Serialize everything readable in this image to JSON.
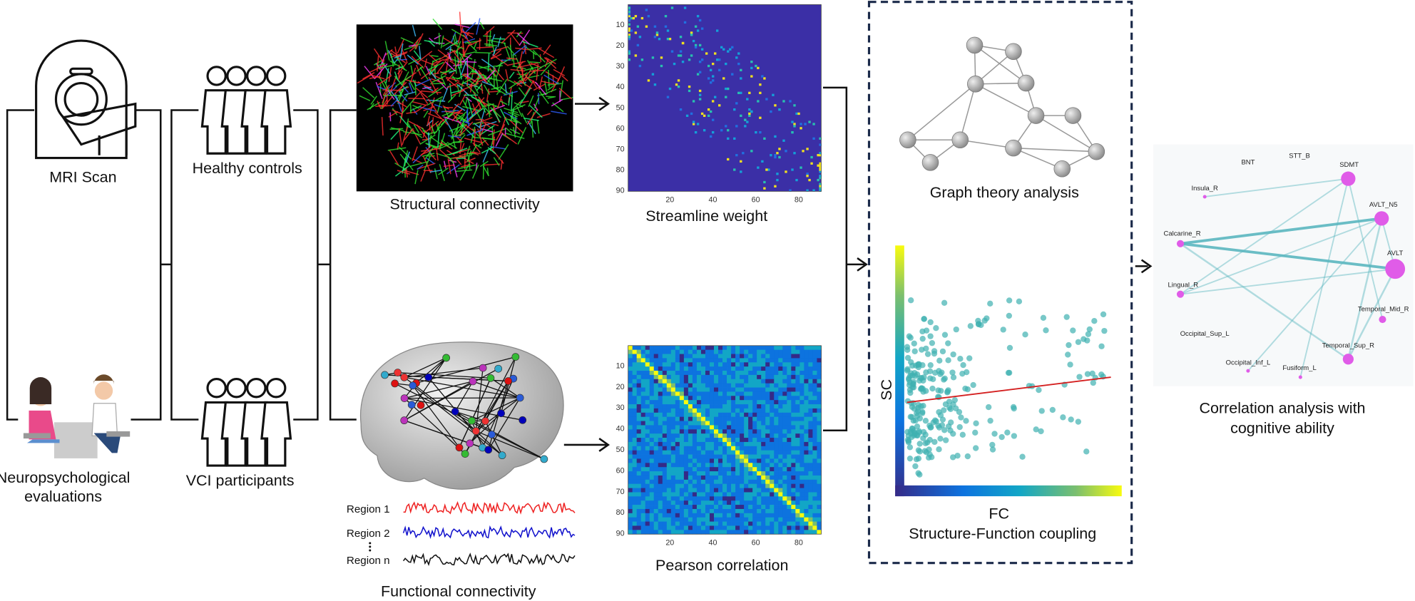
{
  "left": {
    "mri": "MRI Scan",
    "neuro": [
      "Neuropsychological",
      "evaluations"
    ]
  },
  "groups": {
    "healthy": "Healthy controls",
    "vci": "VCI participants"
  },
  "structural": {
    "label": "Structural connectivity"
  },
  "functional": {
    "label": "Functional connectivity",
    "regions": [
      "Region 1",
      "Region 2",
      "Region n"
    ]
  },
  "matrices": [
    {
      "label": "Streamline weight"
    },
    {
      "label": "Pearson correlation"
    }
  ],
  "matrix_yticks": [
    10,
    20,
    30,
    40,
    50,
    60,
    70,
    80,
    90
  ],
  "matrix_xticks": [
    20,
    40,
    60,
    80
  ],
  "graph": {
    "label": "Graph theory analysis"
  },
  "coupling": {
    "y_label": "SC",
    "x_label": "FC",
    "label": "Structure-Function coupling"
  },
  "network": {
    "nodes": [
      {
        "label": "BNT"
      },
      {
        "label": "STT_B"
      },
      {
        "label": "SDMT"
      },
      {
        "label": "Insula_R"
      },
      {
        "label": "AVLT_N5"
      },
      {
        "label": "Calcarine_R"
      },
      {
        "label": "AVLT"
      },
      {
        "label": "Lingual_R"
      },
      {
        "label": "Temporal_Mid_R"
      },
      {
        "label": "Occipital_Sup_L"
      },
      {
        "label": "Temporal_Sup_R"
      },
      {
        "label": "Occipital_Inf_L"
      },
      {
        "label": "Fusiform_L"
      }
    ],
    "caption": [
      "Correlation analysis with",
      "cognitive ability"
    ]
  }
}
